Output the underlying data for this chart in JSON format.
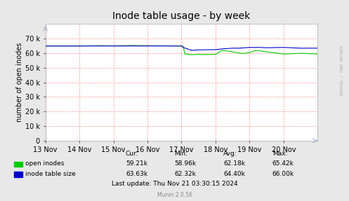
{
  "title": "Inode table usage - by week",
  "ylabel": "number of open inodes",
  "bg_color": "#e8e8e8",
  "plot_bg_color": "#ffffff",
  "grid_color": "#ff9999",
  "x_labels": [
    "13 Nov",
    "14 Nov",
    "15 Nov",
    "16 Nov",
    "17 Nov",
    "18 Nov",
    "19 Nov",
    "20 Nov"
  ],
  "x_ticks": [
    0,
    1,
    2,
    3,
    4,
    5,
    6,
    7
  ],
  "ylim": [
    0,
    80000
  ],
  "yticks": [
    0,
    10000,
    20000,
    30000,
    40000,
    50000,
    60000,
    70000
  ],
  "ytick_labels": [
    "0",
    "10 k",
    "20 k",
    "30 k",
    "40 k",
    "50 k",
    "60 k",
    "70 k"
  ],
  "open_inodes_color": "#00cc00",
  "inode_table_color": "#0000cc",
  "legend_items": [
    {
      "label": "open inodes",
      "color": "#00cc00"
    },
    {
      "label": "inode table size",
      "color": "#0000cc"
    }
  ],
  "stats_header": [
    "Cur:",
    "Min:",
    "Avg:",
    "Max:"
  ],
  "stats_open": [
    "59.21k",
    "58.96k",
    "62.18k",
    "65.42k"
  ],
  "stats_table": [
    "63.63k",
    "62.32k",
    "64.40k",
    "66.00k"
  ],
  "last_update": "Last update: Thu Nov 21 03:30:15 2024",
  "munin_version": "Munin 2.0.56",
  "watermark": "RRDTOOL / TOBI OETIKER",
  "arrow_color": "#aaaacc"
}
